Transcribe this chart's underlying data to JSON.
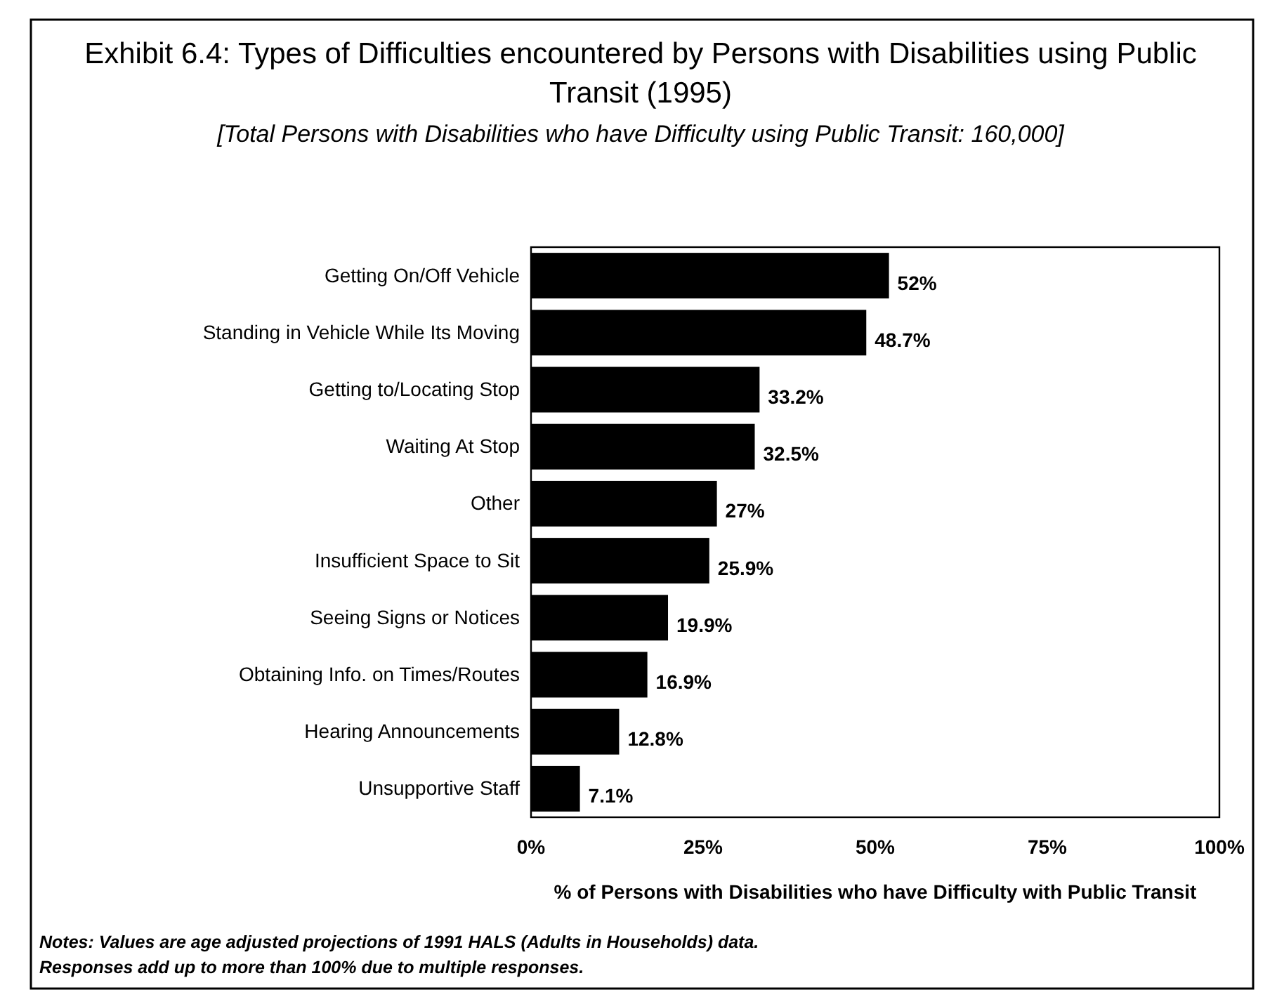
{
  "chart_data": {
    "type": "bar",
    "orientation": "horizontal",
    "title": "Exhibit 6.4: Types of Difficulties encountered by Persons with Disabilities using Public Transit (1995)",
    "subtitle": "[Total Persons with Disabilities who have Difficulty using Public Transit: 160,000]",
    "xlabel": "% of Persons with Disabilities who have Difficulty with Public Transit",
    "categories": [
      "Getting On/Off Vehicle",
      "Standing in Vehicle While Its Moving",
      "Getting to/Locating Stop",
      "Waiting At Stop",
      "Other",
      "Insufficient Space to Sit",
      "Seeing Signs or Notices",
      "Obtaining Info. on Times/Routes",
      "Hearing Announcements",
      "Unsupportive Staff"
    ],
    "values": [
      52,
      48.7,
      33.2,
      32.5,
      27,
      25.9,
      19.9,
      16.9,
      12.8,
      7.1
    ],
    "value_labels": [
      "52%",
      "48.7%",
      "33.2%",
      "32.5%",
      "27%",
      "25.9%",
      "19.9%",
      "16.9%",
      "12.8%",
      "7.1%"
    ],
    "color": "#000000",
    "xlim": [
      0,
      100
    ],
    "xticks": [
      {
        "value": 0,
        "label": "0%"
      },
      {
        "value": 25,
        "label": "25%"
      },
      {
        "value": 50,
        "label": "50%"
      },
      {
        "value": 75,
        "label": "75%"
      },
      {
        "value": 100,
        "label": "100%"
      }
    ],
    "grid": false,
    "annotations": [
      "Notes: Values are age adjusted projections of 1991 HALS (Adults in Households) data.",
      "Responses add up to more than 100% due  to multiple responses."
    ]
  }
}
